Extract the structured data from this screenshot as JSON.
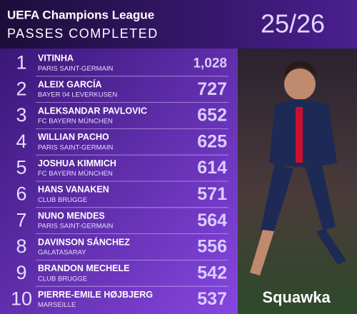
{
  "header": {
    "title": "UEFA Champions League",
    "subtitle": "PASSES COMPLETED",
    "season": "25/26"
  },
  "table": {
    "rows": [
      {
        "rank": "1",
        "name": "VITINHA",
        "club": "PARIS SAINT-GERMAIN",
        "value": "1,028"
      },
      {
        "rank": "2",
        "name": "ALEIX GARCÍA",
        "club": "BAYER 04 LEVERKUSEN",
        "value": "727"
      },
      {
        "rank": "3",
        "name": "ALEKSANDAR PAVLOVIC",
        "club": "FC BAYERN MÜNCHEN",
        "value": "652"
      },
      {
        "rank": "4",
        "name": "WILLIAN PACHO",
        "club": "PARIS SAINT-GERMAIN",
        "value": "625"
      },
      {
        "rank": "5",
        "name": "JOSHUA KIMMICH",
        "club": "FC BAYERN MÜNCHEN",
        "value": "614"
      },
      {
        "rank": "6",
        "name": "HANS VANAKEN",
        "club": "CLUB BRUGGE",
        "value": "571"
      },
      {
        "rank": "7",
        "name": "NUNO MENDES",
        "club": "PARIS SAINT-GERMAIN",
        "value": "564"
      },
      {
        "rank": "8",
        "name": "DAVINSON SÁNCHEZ",
        "club": "GALATASARAY",
        "value": "556"
      },
      {
        "rank": "9",
        "name": "BRANDON MECHELE",
        "club": "CLUB BRUGGE",
        "value": "542"
      },
      {
        "rank": "10",
        "name": "PIERRE-EMILE HØJBJERG",
        "club": "MARSEILLE",
        "value": "537"
      }
    ]
  },
  "brand": "Squawka"
}
